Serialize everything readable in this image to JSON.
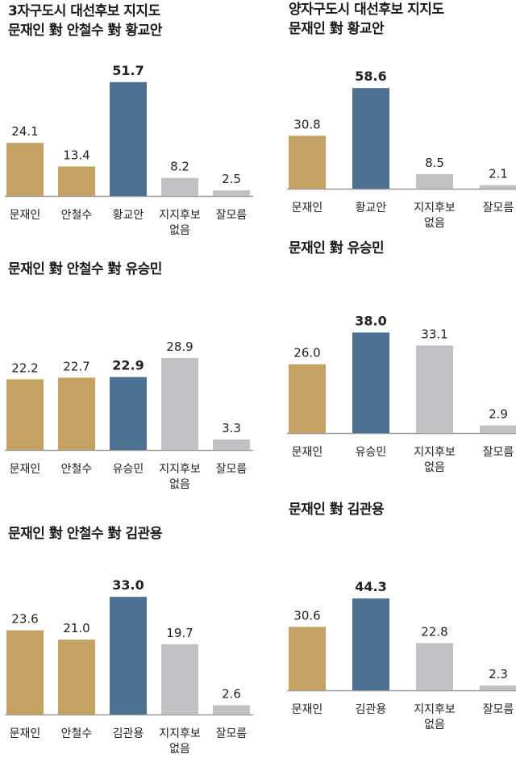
{
  "colors": {
    "moon": "#c4a263",
    "blue": "#4d7191",
    "gray": "#bfc1c4",
    "baseline": "#9a9a9a"
  },
  "titles": {
    "left": "3자구도시 대선후보 지지도\n문재인 對 안철수 對 황교안",
    "right": "양자구도시 대선후보 지지도\n문재인 對 황교안",
    "left2": "문재인 對 안철수 對 유승민",
    "right2": "문재인 對 유승민",
    "left3": "문재인 對 안철수 對 김관용",
    "right3": "문재인 對 김관용"
  },
  "chart_data": [
    {
      "type": "bar",
      "categories": [
        "문재인",
        "안철수",
        "황교안",
        "지지후보\n없음",
        "잘모름"
      ],
      "values": [
        24.1,
        13.4,
        51.7,
        8.2,
        2.5
      ],
      "value_labels": [
        "24.1",
        "13.4",
        "51.7",
        "8.2",
        "2.5"
      ],
      "colors": [
        "moon",
        "moon",
        "blue",
        "gray",
        "gray"
      ],
      "highlight": 2
    },
    {
      "type": "bar",
      "categories": [
        "문재인",
        "황교안",
        "지지후보\n없음",
        "잘모름"
      ],
      "values": [
        30.8,
        58.6,
        8.5,
        2.1
      ],
      "value_labels": [
        "30.8",
        "58.6",
        "8.5",
        "2.1"
      ],
      "colors": [
        "moon",
        "blue",
        "gray",
        "gray"
      ],
      "highlight": 1
    },
    {
      "type": "bar",
      "categories": [
        "문재인",
        "안철수",
        "유승민",
        "지지후보\n없음",
        "잘모름"
      ],
      "values": [
        22.2,
        22.7,
        22.9,
        28.9,
        3.3
      ],
      "value_labels": [
        "22.2",
        "22.7",
        "22.9",
        "28.9",
        "3.3"
      ],
      "colors": [
        "moon",
        "moon",
        "blue",
        "gray",
        "gray"
      ],
      "highlight": 2
    },
    {
      "type": "bar",
      "categories": [
        "문재인",
        "유승민",
        "지지후보\n없음",
        "잘모름"
      ],
      "values": [
        26.0,
        38.0,
        33.1,
        2.9
      ],
      "value_labels": [
        "26.0",
        "38.0",
        "33.1",
        "2.9"
      ],
      "colors": [
        "moon",
        "blue",
        "gray",
        "gray"
      ],
      "highlight": 1
    },
    {
      "type": "bar",
      "categories": [
        "문재인",
        "안철수",
        "김관용",
        "지지후보\n없음",
        "잘모름"
      ],
      "values": [
        23.6,
        21.0,
        33.0,
        19.7,
        2.6
      ],
      "value_labels": [
        "23.6",
        "21.0",
        "33.0",
        "19.7",
        "2.6"
      ],
      "colors": [
        "moon",
        "moon",
        "blue",
        "gray",
        "gray"
      ],
      "highlight": 2
    },
    {
      "type": "bar",
      "categories": [
        "문재인",
        "김관용",
        "지지후보\n없음",
        "잘모름"
      ],
      "values": [
        30.6,
        44.3,
        22.8,
        2.3
      ],
      "value_labels": [
        "30.6",
        "44.3",
        "22.8",
        "2.3"
      ],
      "colors": [
        "moon",
        "blue",
        "gray",
        "gray"
      ],
      "highlight": 1
    }
  ]
}
